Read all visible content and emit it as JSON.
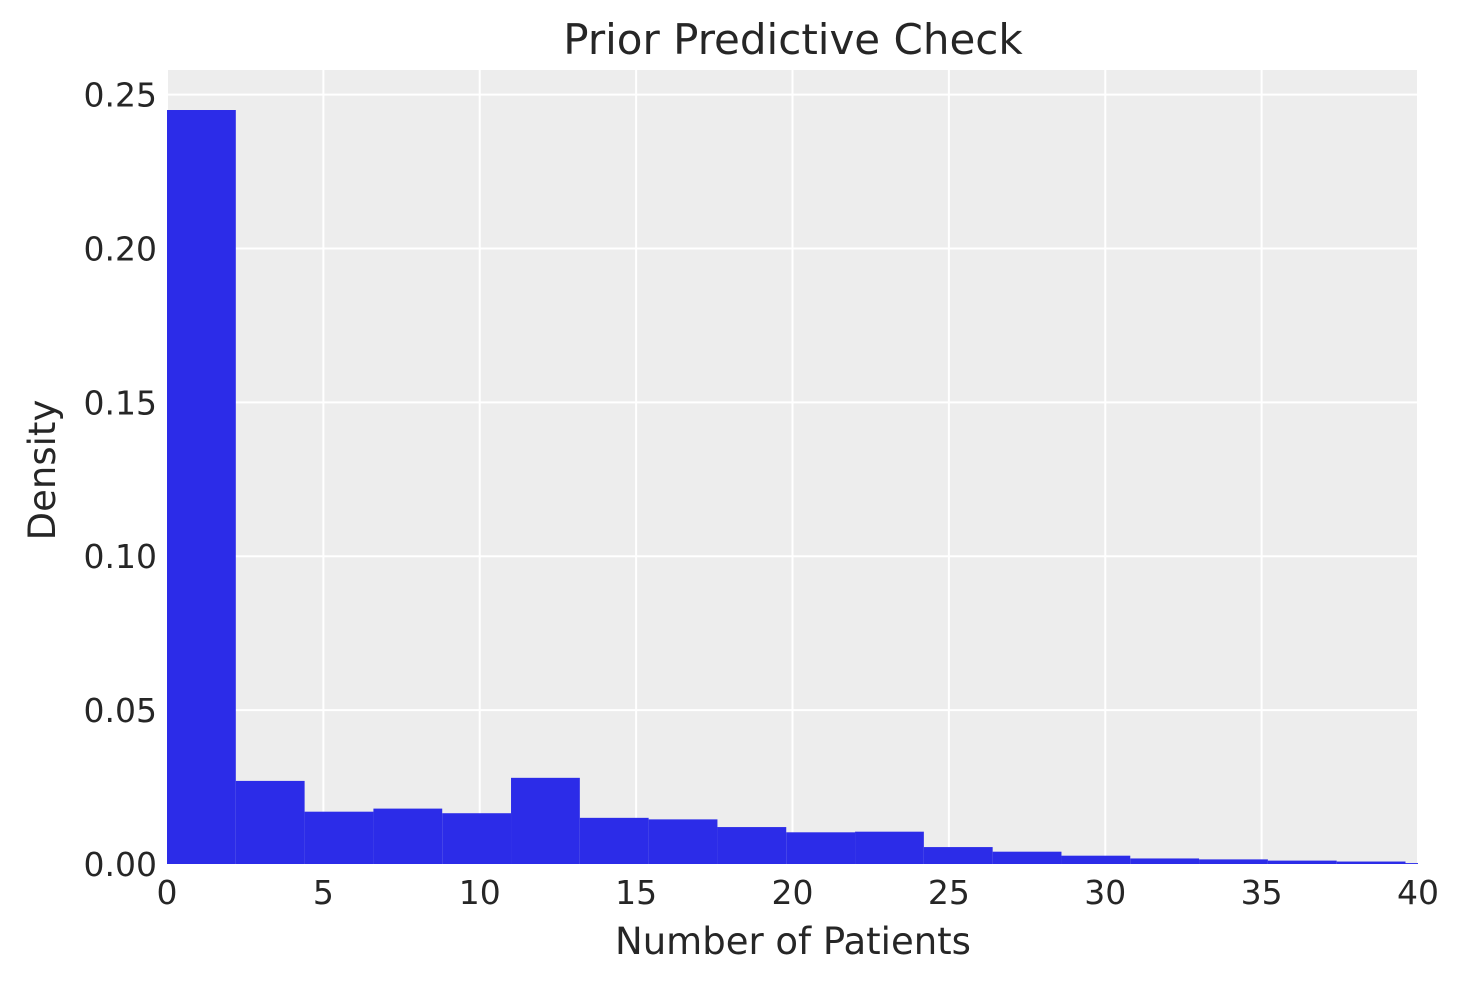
{
  "chart_data": {
    "type": "bar",
    "title": "Prior Predictive Check",
    "xlabel": "Number of Patients",
    "ylabel": "Density",
    "xlim": [
      0,
      40
    ],
    "ylim": [
      0,
      0.258
    ],
    "x_ticks": [
      "0",
      "5",
      "10",
      "15",
      "20",
      "25",
      "30",
      "35",
      "40"
    ],
    "y_ticks": [
      "0.00",
      "0.05",
      "0.10",
      "0.15",
      "0.20",
      "0.25"
    ],
    "grid": true,
    "bar_color": "#2c2ce8",
    "background_color": "#ededed",
    "grid_color": "#ffffff",
    "bins": [
      {
        "x0": 0.0,
        "x1": 2.2,
        "density": 0.245
      },
      {
        "x0": 2.2,
        "x1": 4.4,
        "density": 0.027
      },
      {
        "x0": 4.4,
        "x1": 6.6,
        "density": 0.017
      },
      {
        "x0": 6.6,
        "x1": 8.8,
        "density": 0.018
      },
      {
        "x0": 8.8,
        "x1": 11.0,
        "density": 0.0165
      },
      {
        "x0": 11.0,
        "x1": 13.2,
        "density": 0.028
      },
      {
        "x0": 13.2,
        "x1": 15.4,
        "density": 0.015
      },
      {
        "x0": 15.4,
        "x1": 17.6,
        "density": 0.0145
      },
      {
        "x0": 17.6,
        "x1": 19.8,
        "density": 0.012
      },
      {
        "x0": 19.8,
        "x1": 22.0,
        "density": 0.0103
      },
      {
        "x0": 22.0,
        "x1": 24.2,
        "density": 0.0105
      },
      {
        "x0": 24.2,
        "x1": 26.4,
        "density": 0.0055
      },
      {
        "x0": 26.4,
        "x1": 28.6,
        "density": 0.004
      },
      {
        "x0": 28.6,
        "x1": 30.8,
        "density": 0.0027
      },
      {
        "x0": 30.8,
        "x1": 33.0,
        "density": 0.0018
      },
      {
        "x0": 33.0,
        "x1": 35.2,
        "density": 0.0015
      },
      {
        "x0": 35.2,
        "x1": 37.4,
        "density": 0.0011
      },
      {
        "x0": 37.4,
        "x1": 39.6,
        "density": 0.0008
      },
      {
        "x0": 39.6,
        "x1": 41.8,
        "density": 0.0003
      }
    ]
  }
}
